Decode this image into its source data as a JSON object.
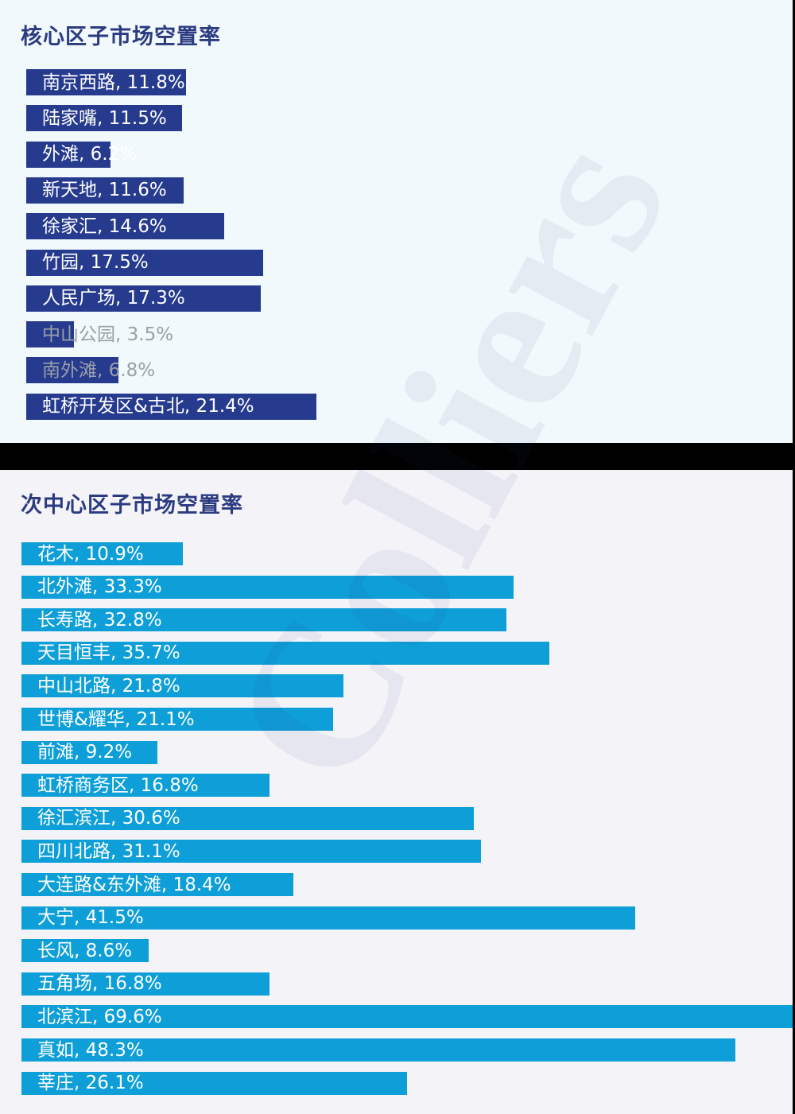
{
  "watermark": "Colliers",
  "chart_data": [
    {
      "type": "bar",
      "orientation": "horizontal",
      "title": "核心区子市场空置率",
      "categories": [
        "南京西路",
        "陆家嘴",
        "外滩",
        "新天地",
        "徐家汇",
        "竹园",
        "人民广场",
        "中山公园",
        "南外滩",
        "虹桥开发区&古北"
      ],
      "labels": [
        "南京西路, 11.8%",
        "陆家嘴, 11.5%",
        "外滩, 6.2%",
        "新天地, 11.6%",
        "徐家汇, 14.6%",
        "竹园, 17.5%",
        "人民广场, 17.3%",
        "中山公园, 3.5%",
        "南外滩, 6.8%",
        "虹桥开发区&古北, 21.4%"
      ],
      "values": [
        11.8,
        11.5,
        6.2,
        11.6,
        14.6,
        17.5,
        17.3,
        3.5,
        6.8,
        21.4
      ],
      "unit": "%",
      "bar_color": "#263a8e"
    },
    {
      "type": "bar",
      "orientation": "horizontal",
      "title": "次中心区子市场空置率",
      "categories": [
        "花木",
        "北外滩",
        "长寿路",
        "天目恒丰",
        "中山北路",
        "世博&耀华",
        "前滩",
        "虹桥商务区",
        "徐汇滨江",
        "四川北路",
        "大连路&东外滩",
        "大宁",
        "长风",
        "五角场",
        "北滨江",
        "真如",
        "莘庄"
      ],
      "labels": [
        "花木, 10.9%",
        "北外滩, 33.3%",
        "长寿路, 32.8%",
        "天目恒丰, 35.7%",
        "中山北路, 21.8%",
        "世博&耀华, 21.1%",
        "前滩, 9.2%",
        "虹桥商务区, 16.8%",
        "徐汇滨江, 30.6%",
        "四川北路, 31.1%",
        "大连路&东外滩, 18.4%",
        "大宁, 41.5%",
        "长风, 8.6%",
        "五角场, 16.8%",
        "北滨江, 69.6%",
        "真如, 48.3%",
        "莘庄, 26.1%"
      ],
      "values": [
        10.9,
        33.3,
        32.8,
        35.7,
        21.8,
        21.1,
        9.2,
        16.8,
        30.6,
        31.1,
        18.4,
        41.5,
        8.6,
        16.8,
        69.6,
        48.3,
        26.1
      ],
      "unit": "%",
      "bar_color": "#0e9fd8"
    }
  ]
}
